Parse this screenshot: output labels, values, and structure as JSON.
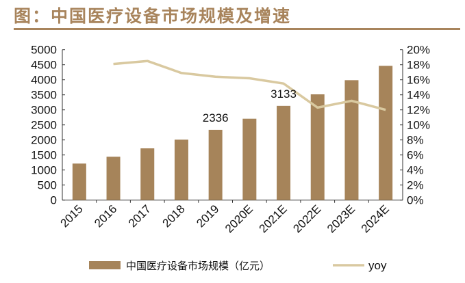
{
  "title": "图：中国医疗设备市场规模及增速",
  "colors": {
    "bar": "#a6845a",
    "line": "#d9c9a0",
    "title": "#a8845c"
  },
  "chart_data": {
    "type": "bar+line",
    "categories": [
      "2015",
      "2016",
      "2017",
      "2018",
      "2019",
      "2020E",
      "2021E",
      "2022E",
      "2023E",
      "2024E"
    ],
    "series": [
      {
        "name": "中国医疗设备市场规模（亿元）",
        "type": "bar",
        "axis": "left",
        "values": [
          1214,
          1441,
          1720,
          2009,
          2336,
          2705,
          3133,
          3516,
          3986,
          4464
        ]
      },
      {
        "name": "yoy",
        "type": "line",
        "axis": "right",
        "values": [
          null,
          18.1,
          18.5,
          16.9,
          16.4,
          16.2,
          15.5,
          12.3,
          13.2,
          12.0
        ]
      }
    ],
    "data_labels": [
      {
        "category": "2019",
        "text": "2336"
      },
      {
        "category": "2021E",
        "text": "3133"
      }
    ],
    "ylim_left": [
      0,
      5000
    ],
    "yticks_left": [
      "0",
      "500",
      "1000",
      "1500",
      "2000",
      "2500",
      "3000",
      "3500",
      "4000",
      "4500",
      "5000"
    ],
    "ylim_right": [
      0,
      20
    ],
    "yticks_right": [
      "0%",
      "2%",
      "4%",
      "6%",
      "8%",
      "10%",
      "12%",
      "14%",
      "16%",
      "18%",
      "20%"
    ],
    "grid": false,
    "legend": "bottom"
  }
}
